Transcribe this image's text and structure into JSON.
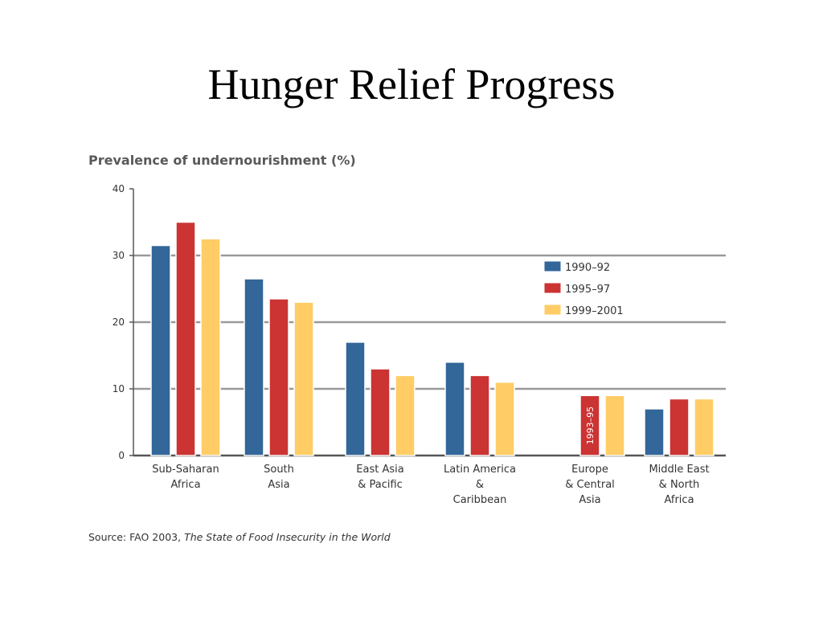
{
  "slide": {
    "title": "Hunger Relief Progress"
  },
  "source": {
    "prefix": "Source: FAO 2003, ",
    "work": "The State of Food Insecurity in the World"
  },
  "colors": {
    "series": [
      "#336699",
      "#cc3333",
      "#ffcc66"
    ],
    "gridline": "#999999",
    "axis": "#555555"
  },
  "chart_data": {
    "type": "bar",
    "title": "Prevalence of undernourishment (%)",
    "xlabel": "",
    "ylabel": "",
    "ylim": [
      0,
      40
    ],
    "yticks": [
      0,
      10,
      20,
      30,
      40
    ],
    "grid": "horizontal at 10, 20, 30",
    "legend_position": "right",
    "categories": [
      [
        "Sub-Saharan",
        "Africa"
      ],
      [
        "South",
        "Asia"
      ],
      [
        "East Asia",
        "& Pacific"
      ],
      [
        "Latin America",
        "&",
        "Caribbean"
      ],
      [
        "Europe",
        "& Central",
        "Asia"
      ],
      [
        "Middle East",
        "& North",
        "Africa"
      ]
    ],
    "series": [
      {
        "name": "1990–92",
        "values": [
          31.5,
          26.5,
          17,
          14,
          null,
          7
        ]
      },
      {
        "name": "1995–97",
        "values": [
          35,
          23.5,
          13,
          12,
          9,
          8.5
        ]
      },
      {
        "name": "1999–2001",
        "values": [
          32.5,
          23,
          12,
          11,
          9,
          8.5
        ]
      }
    ],
    "annotations": [
      {
        "text": "1993–95",
        "category": 4,
        "series": 1,
        "orientation": "vertical"
      }
    ]
  }
}
